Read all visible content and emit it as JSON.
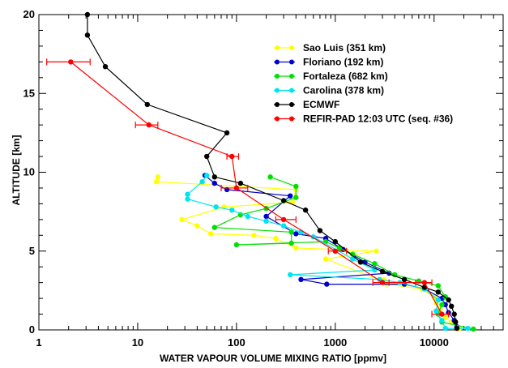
{
  "chart_data": {
    "type": "line",
    "xlabel": "WATER VAPOUR VOLUME MIXING RATIO [ppmv]",
    "ylabel": "ALTITUDE [km]",
    "xscale": "log",
    "xlim": [
      1,
      50000
    ],
    "ylim": [
      0,
      20
    ],
    "xticks": [
      {
        "value": 1,
        "label": "1"
      },
      {
        "value": 10,
        "label": "10"
      },
      {
        "value": 100,
        "label": "100"
      },
      {
        "value": 1000,
        "label": "1000"
      },
      {
        "value": 10000,
        "label": "10000"
      }
    ],
    "yticks": [
      {
        "value": 0,
        "label": "0"
      },
      {
        "value": 5,
        "label": "5"
      },
      {
        "value": 10,
        "label": "10"
      },
      {
        "value": 15,
        "label": "15"
      },
      {
        "value": 20,
        "label": "20"
      }
    ],
    "grid": false,
    "legend_position": "top-right",
    "series": [
      {
        "name": "Sao Luis (351 km)",
        "color": "#ffff00",
        "points": [
          [
            16,
            9.7
          ],
          [
            15.5,
            9.4
          ],
          [
            400,
            8.9
          ],
          [
            370,
            8.1
          ],
          [
            75,
            7.8
          ],
          [
            28,
            7.0
          ],
          [
            40,
            6.6
          ],
          [
            55,
            6.1
          ],
          [
            150,
            6.0
          ],
          [
            250,
            5.8
          ],
          [
            400,
            5.2
          ],
          [
            2600,
            5.0
          ],
          [
            800,
            4.5
          ],
          [
            3300,
            3.0
          ],
          [
            3100,
            3.2
          ],
          [
            3300,
            2.9
          ],
          [
            7500,
            2.6
          ],
          [
            10000,
            2.1
          ],
          [
            10500,
            1.7
          ],
          [
            11500,
            1.3
          ],
          [
            13000,
            0.8
          ],
          [
            15000,
            0.5
          ],
          [
            18000,
            0.1
          ]
        ]
      },
      {
        "name": "Floriano (192 km)",
        "color": "#0000cd",
        "points": [
          [
            48,
            9.8
          ],
          [
            60,
            9.3
          ],
          [
            80,
            8.9
          ],
          [
            350,
            8.5
          ],
          [
            200,
            7.2
          ],
          [
            400,
            6.1
          ],
          [
            800,
            5.8
          ],
          [
            1200,
            5.1
          ],
          [
            2000,
            4.3
          ],
          [
            3500,
            3.6
          ],
          [
            450,
            3.2
          ],
          [
            820,
            2.9
          ],
          [
            5000,
            2.9
          ],
          [
            8000,
            2.6
          ],
          [
            12000,
            2.0
          ],
          [
            13000,
            1.6
          ],
          [
            14000,
            1.1
          ],
          [
            16000,
            0.6
          ],
          [
            17000,
            0.2
          ]
        ]
      },
      {
        "name": "Fortaleza (682 km)",
        "color": "#00e000",
        "points": [
          [
            220,
            9.7
          ],
          [
            400,
            9.1
          ],
          [
            400,
            8.4
          ],
          [
            200,
            7.7
          ],
          [
            110,
            7.3
          ],
          [
            60,
            6.5
          ],
          [
            360,
            6.2
          ],
          [
            360,
            5.5
          ],
          [
            100,
            5.4
          ],
          [
            800,
            5.6
          ],
          [
            1100,
            5.2
          ],
          [
            1500,
            4.8
          ],
          [
            2500,
            4.2
          ],
          [
            4000,
            3.5
          ],
          [
            7000,
            3.1
          ],
          [
            11000,
            2.8
          ],
          [
            13000,
            2.1
          ],
          [
            12000,
            1.6
          ],
          [
            11000,
            1.0
          ],
          [
            12000,
            0.5
          ],
          [
            25000,
            0.05
          ]
        ]
      },
      {
        "name": "Carolina (378 km)",
        "color": "#00e5ee",
        "points": [
          [
            50,
            9.8
          ],
          [
            45,
            9.4
          ],
          [
            32,
            8.6
          ],
          [
            32,
            8.3
          ],
          [
            62,
            7.8
          ],
          [
            90,
            7.6
          ],
          [
            130,
            7.2
          ],
          [
            200,
            6.9
          ],
          [
            300,
            6.6
          ],
          [
            450,
            6.2
          ],
          [
            600,
            5.9
          ],
          [
            1500,
            4.5
          ],
          [
            2500,
            3.8
          ],
          [
            350,
            3.5
          ],
          [
            2800,
            3.2
          ],
          [
            4500,
            3.0
          ],
          [
            8000,
            2.6
          ],
          [
            11000,
            1.9
          ],
          [
            10500,
            1.2
          ],
          [
            12000,
            0.6
          ],
          [
            13000,
            0.1
          ],
          [
            22000,
            0.1
          ]
        ]
      },
      {
        "name": "ECMWF",
        "color": "#000000",
        "points": [
          [
            3.1,
            20
          ],
          [
            3.1,
            18.7
          ],
          [
            4.7,
            16.7
          ],
          [
            12.5,
            14.3
          ],
          [
            80,
            12.5
          ],
          [
            50,
            11
          ],
          [
            60,
            9.7
          ],
          [
            110,
            9.3
          ],
          [
            300,
            8.2
          ],
          [
            500,
            7.6
          ],
          [
            700,
            6.3
          ],
          [
            1000,
            5.6
          ],
          [
            1800,
            4.3
          ],
          [
            3000,
            3.7
          ],
          [
            5000,
            3.2
          ],
          [
            8000,
            2.7
          ],
          [
            11000,
            2.4
          ],
          [
            14000,
            1.9
          ],
          [
            15000,
            1.5
          ],
          [
            16000,
            1.0
          ],
          [
            16500,
            0.5
          ],
          [
            17000,
            0.1
          ]
        ]
      },
      {
        "name": "REFIR-PAD 12:03 UTC (seq. #36)",
        "color": "#ff0000",
        "points": [
          [
            2.1,
            17.0
          ],
          [
            13,
            13.0
          ],
          [
            90,
            11.0
          ],
          [
            100,
            9.0
          ],
          [
            300,
            7.0
          ],
          [
            1000,
            5.0
          ],
          [
            3000,
            3.0
          ],
          [
            8000,
            3.0
          ],
          [
            12000,
            1.0
          ]
        ],
        "error_x": [
          [
            1.2,
            3.3
          ],
          [
            9.5,
            16
          ],
          [
            80,
            105
          ],
          [
            70,
            130
          ],
          [
            250,
            400
          ],
          [
            850,
            1300
          ],
          [
            2400,
            3500
          ],
          [
            6500,
            9500
          ],
          [
            9500,
            14000
          ]
        ]
      }
    ]
  }
}
